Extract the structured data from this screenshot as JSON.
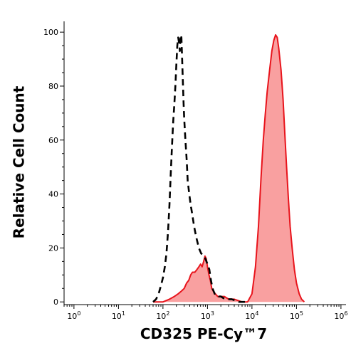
{
  "chart_data": {
    "type": "area",
    "title": "",
    "xlabel": "CD325 PE-Cy™7",
    "ylabel": "Relative Cell Count",
    "x_scale": "log",
    "xlim": [
      0.6,
      1300000
    ],
    "ylim": [
      -1,
      104
    ],
    "x_ticks": [
      {
        "value": 1,
        "base": "10",
        "exp": "0"
      },
      {
        "value": 10,
        "base": "10",
        "exp": "1"
      },
      {
        "value": 100,
        "base": "10",
        "exp": "2"
      },
      {
        "value": 1000,
        "base": "10",
        "exp": "3"
      },
      {
        "value": 10000,
        "base": "10",
        "exp": "4"
      },
      {
        "value": 100000,
        "base": "10",
        "exp": "5"
      },
      {
        "value": 1000000,
        "base": "10",
        "exp": "6"
      }
    ],
    "y_ticks": [
      {
        "value": 0,
        "label": "0"
      },
      {
        "value": 20,
        "label": "20"
      },
      {
        "value": 40,
        "label": "40"
      },
      {
        "value": 60,
        "label": "60"
      },
      {
        "value": 80,
        "label": "80"
      },
      {
        "value": 100,
        "label": "100"
      }
    ],
    "grid": false,
    "legend": "none",
    "series": [
      {
        "style": "dashed",
        "fill": "none",
        "color": "#000000",
        "points": [
          [
            60,
            0
          ],
          [
            70,
            1
          ],
          [
            80,
            3
          ],
          [
            90,
            6
          ],
          [
            100,
            9
          ],
          [
            110,
            13
          ],
          [
            120,
            18
          ],
          [
            130,
            26
          ],
          [
            140,
            36
          ],
          [
            150,
            48
          ],
          [
            160,
            58
          ],
          [
            170,
            67
          ],
          [
            180,
            73
          ],
          [
            190,
            80
          ],
          [
            200,
            88
          ],
          [
            210,
            95
          ],
          [
            220,
            98
          ],
          [
            230,
            96
          ],
          [
            240,
            93
          ],
          [
            250,
            99
          ],
          [
            260,
            98
          ],
          [
            270,
            90
          ],
          [
            280,
            82
          ],
          [
            290,
            74
          ],
          [
            300,
            68
          ],
          [
            320,
            60
          ],
          [
            340,
            53
          ],
          [
            360,
            45
          ],
          [
            390,
            40
          ],
          [
            420,
            36
          ],
          [
            460,
            32
          ],
          [
            500,
            28
          ],
          [
            560,
            24
          ],
          [
            640,
            20
          ],
          [
            720,
            18
          ],
          [
            820,
            17
          ],
          [
            900,
            16
          ],
          [
            1000,
            14
          ],
          [
            1100,
            12
          ],
          [
            1200,
            8
          ],
          [
            1300,
            5
          ],
          [
            1450,
            3
          ],
          [
            1600,
            3
          ],
          [
            1800,
            2
          ],
          [
            2000,
            2
          ],
          [
            2500,
            1
          ],
          [
            3500,
            1
          ],
          [
            5000,
            0
          ],
          [
            7000,
            0
          ]
        ]
      },
      {
        "style": "solid",
        "fill": "#f9a0a0",
        "color": "#e8141c",
        "points": [
          [
            60,
            0
          ],
          [
            100,
            0
          ],
          [
            140,
            1
          ],
          [
            180,
            2
          ],
          [
            220,
            3
          ],
          [
            260,
            4
          ],
          [
            300,
            5
          ],
          [
            340,
            7
          ],
          [
            380,
            8
          ],
          [
            420,
            10
          ],
          [
            460,
            11
          ],
          [
            520,
            11
          ],
          [
            580,
            12
          ],
          [
            640,
            13
          ],
          [
            700,
            14
          ],
          [
            760,
            13
          ],
          [
            820,
            15
          ],
          [
            880,
            17
          ],
          [
            940,
            16
          ],
          [
            1000,
            13
          ],
          [
            1080,
            10
          ],
          [
            1160,
            8
          ],
          [
            1250,
            5
          ],
          [
            1350,
            4
          ],
          [
            1500,
            3
          ],
          [
            1700,
            2
          ],
          [
            2000,
            2
          ],
          [
            2400,
            2
          ],
          [
            3000,
            1
          ],
          [
            4000,
            1
          ],
          [
            6000,
            0
          ],
          [
            8000,
            0
          ],
          [
            10000,
            3
          ],
          [
            12000,
            13
          ],
          [
            14000,
            28
          ],
          [
            16000,
            46
          ],
          [
            18000,
            60
          ],
          [
            20000,
            70
          ],
          [
            22000,
            78
          ],
          [
            25000,
            86
          ],
          [
            28000,
            93
          ],
          [
            31000,
            97
          ],
          [
            34000,
            99
          ],
          [
            37000,
            98
          ],
          [
            40000,
            94
          ],
          [
            45000,
            86
          ],
          [
            50000,
            75
          ],
          [
            55000,
            62
          ],
          [
            60000,
            50
          ],
          [
            66000,
            38
          ],
          [
            72000,
            28
          ],
          [
            80000,
            20
          ],
          [
            90000,
            12
          ],
          [
            100000,
            7
          ],
          [
            115000,
            3
          ],
          [
            130000,
            1
          ],
          [
            150000,
            0
          ]
        ]
      }
    ]
  }
}
